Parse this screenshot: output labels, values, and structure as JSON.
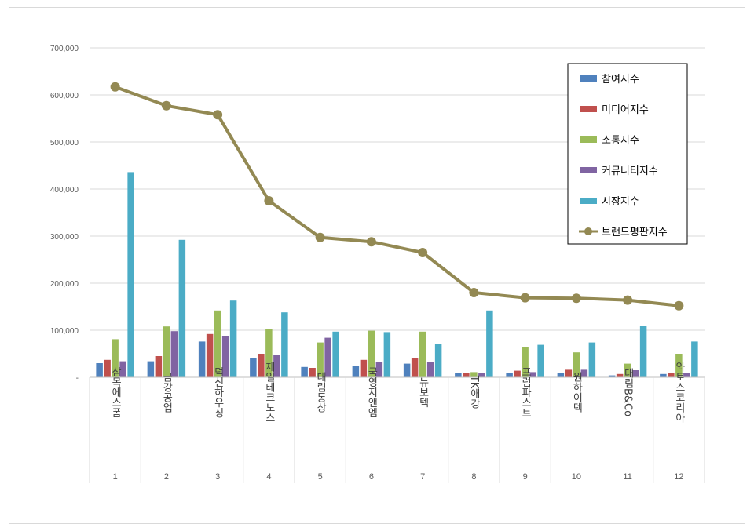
{
  "chart_data": {
    "type": "bar",
    "title": "",
    "xlabel": "",
    "ylabel": "",
    "ylim": [
      0,
      700000
    ],
    "yticks": [
      0,
      100000,
      200000,
      300000,
      400000,
      500000,
      600000,
      700000
    ],
    "ytick_labels": [
      "-",
      "100,000",
      "200,000",
      "300,000",
      "400,000",
      "500,000",
      "600,000",
      "700,000"
    ],
    "categories": [
      "삼목에스폼",
      "금강공업",
      "덕신하우징",
      "제일테크노스",
      "대림통상",
      "국영지앤엠",
      "뉴보텍",
      "TK애강",
      "프럼파스트",
      "원하이텍",
      "대림B&Co",
      "와토스코리아"
    ],
    "ranks": [
      "1",
      "2",
      "3",
      "4",
      "5",
      "6",
      "7",
      "8",
      "9",
      "10",
      "11",
      "12"
    ],
    "series": [
      {
        "name": "참여지수",
        "type": "bar",
        "color": "#4f81bd",
        "values": [
          30000,
          34000,
          76000,
          40000,
          22000,
          25000,
          29000,
          9000,
          10000,
          10000,
          4000,
          7000
        ]
      },
      {
        "name": "미디어지수",
        "type": "bar",
        "color": "#c0504d",
        "values": [
          37000,
          45000,
          92000,
          50000,
          20000,
          37000,
          40000,
          9000,
          14000,
          16000,
          7000,
          10000
        ]
      },
      {
        "name": "소통지수",
        "type": "bar",
        "color": "#9bbb59",
        "values": [
          81000,
          108000,
          142000,
          102000,
          74000,
          99000,
          97000,
          11000,
          64000,
          53000,
          29000,
          50000
        ]
      },
      {
        "name": "커뮤니티지수",
        "type": "bar",
        "color": "#8064a2",
        "values": [
          34000,
          98000,
          87000,
          47000,
          84000,
          32000,
          32000,
          9000,
          11000,
          16000,
          15000,
          9000
        ]
      },
      {
        "name": "시장지수",
        "type": "bar",
        "color": "#4bacc6",
        "values": [
          436000,
          292000,
          163000,
          138000,
          97000,
          96000,
          71000,
          142000,
          69000,
          74000,
          110000,
          76000
        ]
      },
      {
        "name": "브랜드평판지수",
        "type": "line",
        "color": "#938953",
        "values": [
          617000,
          577000,
          558000,
          375000,
          297000,
          288000,
          265000,
          180000,
          169000,
          168000,
          164000,
          152000
        ]
      }
    ],
    "legend_position": "top-right",
    "grid": true
  }
}
